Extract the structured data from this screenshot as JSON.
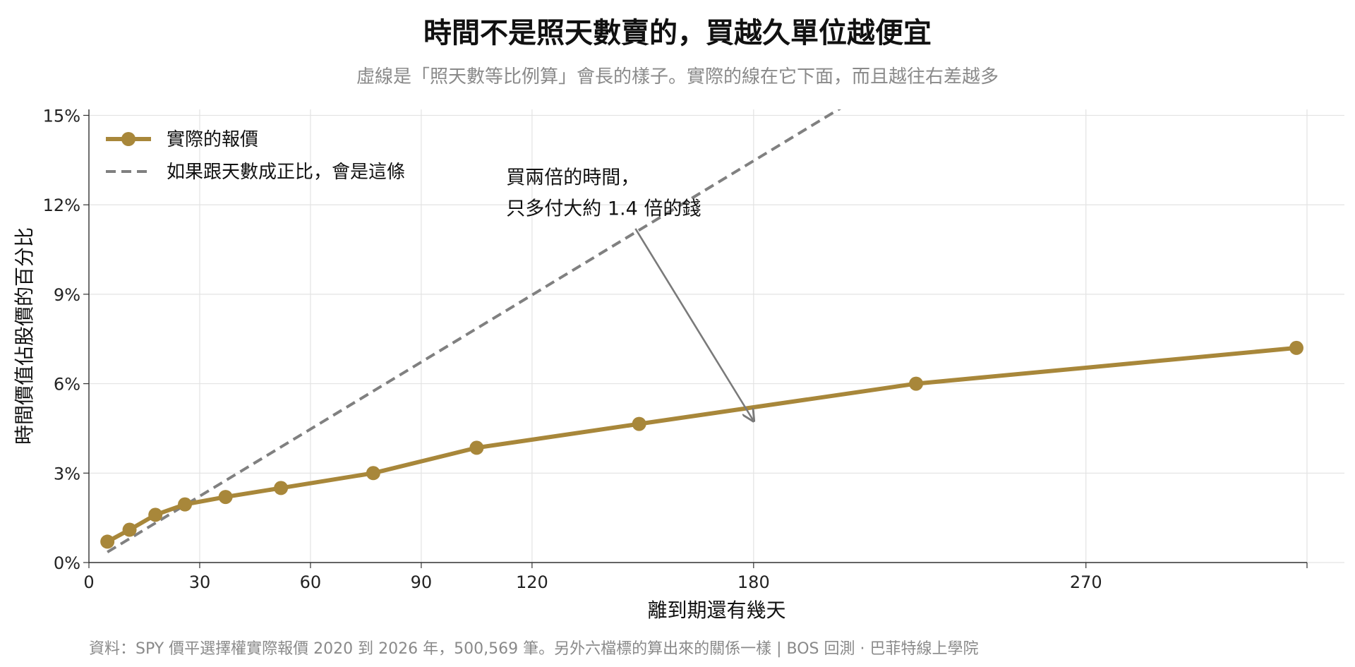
{
  "chart_data": {
    "type": "line",
    "title": "時間不是照天數賣的，買越久單位越便宜",
    "subtitle": "虛線是「照天數等比例算」會長的樣子。實際的線在它下面，而且越往右差越多",
    "xlabel": "離到期還有幾天",
    "ylabel": "時間價值佔股價的百分比",
    "xlim": [
      0,
      340
    ],
    "ylim": [
      0,
      15.2
    ],
    "x_ticks": [
      0,
      30,
      60,
      90,
      120,
      180,
      270
    ],
    "x_tick_labels": [
      "0",
      "30",
      "60",
      "90",
      "120",
      "180",
      "270"
    ],
    "y_ticks": [
      0,
      3,
      6,
      9,
      12,
      15
    ],
    "y_tick_labels": [
      "0%",
      "3%",
      "6%",
      "9%",
      "12%",
      "15%"
    ],
    "grid": true,
    "legend_position": "top-left",
    "series": [
      {
        "name": "實際的報價",
        "style": "solid-markers",
        "color": "#a8873a",
        "x": [
          5,
          11,
          18,
          26,
          37,
          52,
          77,
          105,
          149,
          224,
          327
        ],
        "y": [
          0.7,
          1.1,
          1.6,
          1.95,
          2.2,
          2.5,
          3.0,
          3.85,
          4.65,
          6.0,
          7.2
        ]
      },
      {
        "name": "如果跟天數成正比，會是這條",
        "style": "dashed",
        "color": "#808080",
        "x": [
          5,
          207
        ],
        "y": [
          0.35,
          15.5
        ]
      }
    ],
    "annotation": {
      "lines": [
        "買兩倍的時間，",
        "只多付大約 1.4 倍的錢"
      ],
      "text_x": 113,
      "text_y": 12.7,
      "arrow_from": [
        148,
        11.2
      ],
      "arrow_to": [
        180,
        4.75
      ]
    }
  },
  "footer": "資料：SPY 價平選擇權實際報價 2020 到 2026 年，500,569 筆。另外六檔標的算出來的關係一樣 | BOS 回測 ·   巴菲特線上學院"
}
